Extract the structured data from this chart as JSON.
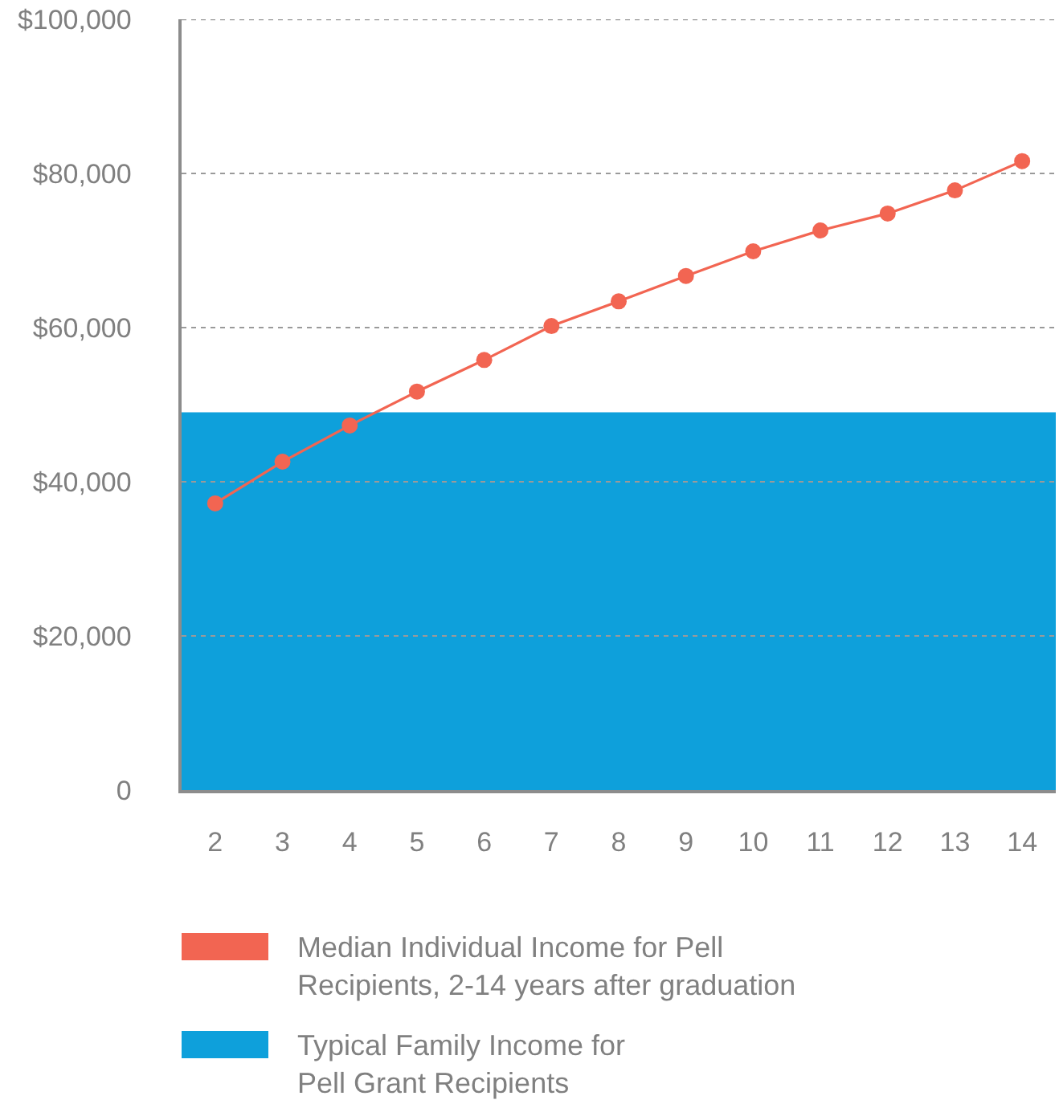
{
  "chart_data": {
    "type": "line",
    "categories": [
      "2",
      "3",
      "4",
      "5",
      "6",
      "7",
      "8",
      "9",
      "10",
      "11",
      "12",
      "13",
      "14"
    ],
    "series": [
      {
        "name": "Median Individual Income for Pell Recipients, 2-14 years after graduation",
        "color": "#f26552",
        "values": [
          37200,
          42600,
          47300,
          51700,
          55800,
          60200,
          63400,
          66700,
          69900,
          72600,
          74800,
          77800,
          81600
        ]
      }
    ],
    "ylim": [
      0,
      100000
    ],
    "yticks": [
      0,
      {
        "value": 20000,
        "label": "$20,000"
      },
      {
        "value": 40000,
        "label": "$40,000"
      },
      {
        "value": 60000,
        "label": "$60,000"
      },
      {
        "value": 80000,
        "label": "$80,000"
      },
      {
        "value": 100000,
        "label": "$100,000"
      }
    ],
    "bands": [
      {
        "axis": "y",
        "from": 0,
        "to": 49000,
        "label": "Typical Family Income for Pell Grant Recipients",
        "color": "#0ea0db"
      }
    ],
    "grid": "y",
    "legend": "bottom",
    "marker": "circle",
    "line_style": "solid"
  }
}
